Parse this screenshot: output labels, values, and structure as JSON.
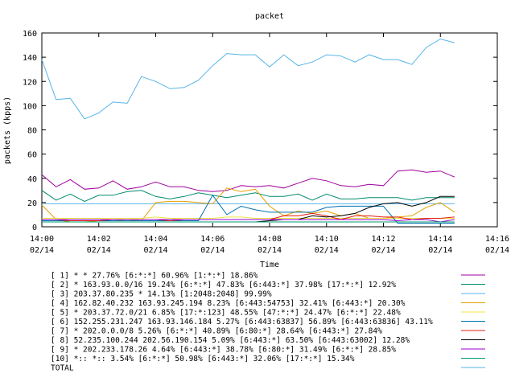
{
  "chart_data": {
    "type": "line",
    "title": "packet",
    "xlabel": "Time",
    "ylabel": "packets (kpps)",
    "ylim": [
      0,
      160
    ],
    "xlim": [
      "14:00",
      "14:16"
    ],
    "y_ticks": [
      "0",
      "20",
      "40",
      "60",
      "80",
      "100",
      "120",
      "140",
      "160"
    ],
    "x_ticks": [
      {
        "time": "14:00",
        "date": "02/14"
      },
      {
        "time": "14:02",
        "date": "02/14"
      },
      {
        "time": "14:04",
        "date": "02/14"
      },
      {
        "time": "14:06",
        "date": "02/14"
      },
      {
        "time": "14:08",
        "date": "02/14"
      },
      {
        "time": "14:10",
        "date": "02/14"
      },
      {
        "time": "14:12",
        "date": "02/14"
      },
      {
        "time": "14:14",
        "date": "02/14"
      },
      {
        "time": "14:16",
        "date": "02/14"
      }
    ],
    "x_minutes": [
      0,
      0.5,
      1,
      1.5,
      2,
      2.5,
      3,
      3.5,
      4,
      4.5,
      5,
      5.5,
      6,
      6.5,
      7,
      7.5,
      8,
      8.5,
      9,
      9.5,
      10,
      10.5,
      11,
      11.5,
      12,
      12.5,
      13,
      13.5,
      14,
      14.5
    ],
    "grid": false,
    "series": [
      {
        "name": "[ 1] * * 27.76%  [6:*:*] 60.96% [1:*:*] 18.86%",
        "color": "#a000a0",
        "values": [
          43,
          33,
          39,
          31,
          32,
          38,
          31,
          33,
          37,
          33,
          33,
          30,
          29,
          30,
          34,
          33,
          34,
          32,
          36,
          40,
          38,
          34,
          33,
          35,
          34,
          46,
          47,
          45,
          46,
          41
        ]
      },
      {
        "name": "[ 2] * 163.93.0.0/16 19.24%  [6:*:*] 47.83% [6:443:*] 37.98% [17:*:*] 12.92%",
        "color": "#008b6b",
        "values": [
          30,
          22,
          27,
          21,
          26,
          26,
          29,
          30,
          25,
          23,
          25,
          28,
          26,
          24,
          26,
          28,
          25,
          25,
          27,
          22,
          27,
          23,
          23,
          24,
          24,
          24,
          22,
          24,
          24,
          24
        ]
      },
      {
        "name": "[ 3] 203.37.80.235 * 14.13%  [1:2048:2048] 99.99%",
        "color": "#56b4e9",
        "values": [
          19,
          19,
          19,
          19,
          19,
          19,
          19,
          19,
          19,
          19,
          19,
          19,
          19,
          19,
          19,
          19,
          19,
          19,
          19,
          19,
          19,
          19,
          19,
          19,
          19,
          19,
          19,
          19,
          19,
          19
        ]
      },
      {
        "name": "[ 4] 162.82.40.232 163.93.245.194 8.23%  [6:443:54753] 32.41% [6:443:*] 20.30%",
        "color": "#e69f00",
        "values": [
          18,
          6,
          4,
          4,
          5,
          5,
          6,
          5,
          20,
          21,
          21,
          20,
          19,
          32,
          29,
          31,
          17,
          9,
          13,
          11,
          13,
          9,
          11,
          7,
          7,
          8,
          9,
          16,
          20,
          12
        ]
      },
      {
        "name": "[ 5] * 203.37.72.0/21 6.85%  [17:*:123] 48.55% [47:*:*] 24.47% [6:*:*] 22.48%",
        "color": "#f0e442",
        "values": [
          7,
          7,
          7,
          7,
          7,
          7,
          7,
          7,
          8,
          7,
          7,
          7,
          7,
          8,
          8,
          7,
          7,
          7,
          7,
          7,
          7,
          7,
          7,
          7,
          7,
          7,
          7,
          7,
          7,
          7
        ]
      },
      {
        "name": "[ 6] 152.255.231.247 163.93.146.184 5.27%  [6:443:63837] 56.89% [6:443:63836] 43.11%",
        "color": "#0072b2",
        "values": [
          5,
          5,
          5,
          5,
          5,
          5,
          5,
          5,
          5,
          5,
          5,
          5,
          26,
          10,
          17,
          14,
          12,
          12,
          12,
          12,
          16,
          17,
          17,
          17,
          17,
          3,
          3,
          3,
          3,
          3
        ]
      },
      {
        "name": "[ 7] * 202.0.0.0/8 5.26%  [6:*:*] 40.89% [6:80:*] 28.64% [6:443:*] 27.84%",
        "color": "#e51e10",
        "values": [
          6,
          6,
          5,
          5,
          5,
          6,
          6,
          6,
          6,
          5,
          6,
          6,
          6,
          6,
          6,
          6,
          6,
          9,
          9,
          11,
          9,
          6,
          9,
          9,
          8,
          8,
          6,
          7,
          7,
          8
        ]
      },
      {
        "name": "[ 8] 52.235.100.244 202.56.190.154 5.09%  [6:443:*] 63.50% [6:443:63002] 12.28%",
        "color": "#000000",
        "values": [
          4,
          4,
          4,
          4,
          4,
          4,
          4,
          4,
          4,
          4,
          4,
          4,
          4,
          4,
          4,
          4,
          5,
          6,
          6,
          9,
          8,
          9,
          11,
          16,
          19,
          20,
          17,
          20,
          25,
          25
        ]
      },
      {
        "name": "[ 9] * 202.233.178.26 4.64%  [6:443:*] 38.78% [6:80:*] 31.49% [6:*:*] 28.85%",
        "color": "#9400d3",
        "values": [
          6,
          6,
          6,
          6,
          6,
          6,
          6,
          6,
          6,
          6,
          6,
          6,
          6,
          6,
          6,
          6,
          6,
          6,
          6,
          6,
          6,
          6,
          6,
          6,
          6,
          5,
          6,
          6,
          4,
          6
        ]
      },
      {
        "name": "[10] *:: *:: 3.54%  [6:*:*] 50.98% [6:443:*] 32.06% [17:*:*] 15.34%",
        "color": "#009e73",
        "values": [
          4,
          4,
          4,
          4,
          4,
          4,
          4,
          4,
          4,
          4,
          4,
          4,
          4,
          4,
          4,
          4,
          4,
          4,
          4,
          4,
          4,
          4,
          4,
          4,
          4,
          4,
          4,
          4,
          4,
          4
        ]
      },
      {
        "name": "TOTAL",
        "color": "#56b4e9",
        "values": [
          138,
          105,
          106,
          89,
          94,
          103,
          102,
          124,
          120,
          114,
          115,
          121,
          133,
          143,
          142,
          142,
          132,
          142,
          133,
          136,
          142,
          141,
          136,
          142,
          138,
          138,
          134,
          148,
          155,
          152
        ]
      }
    ]
  }
}
